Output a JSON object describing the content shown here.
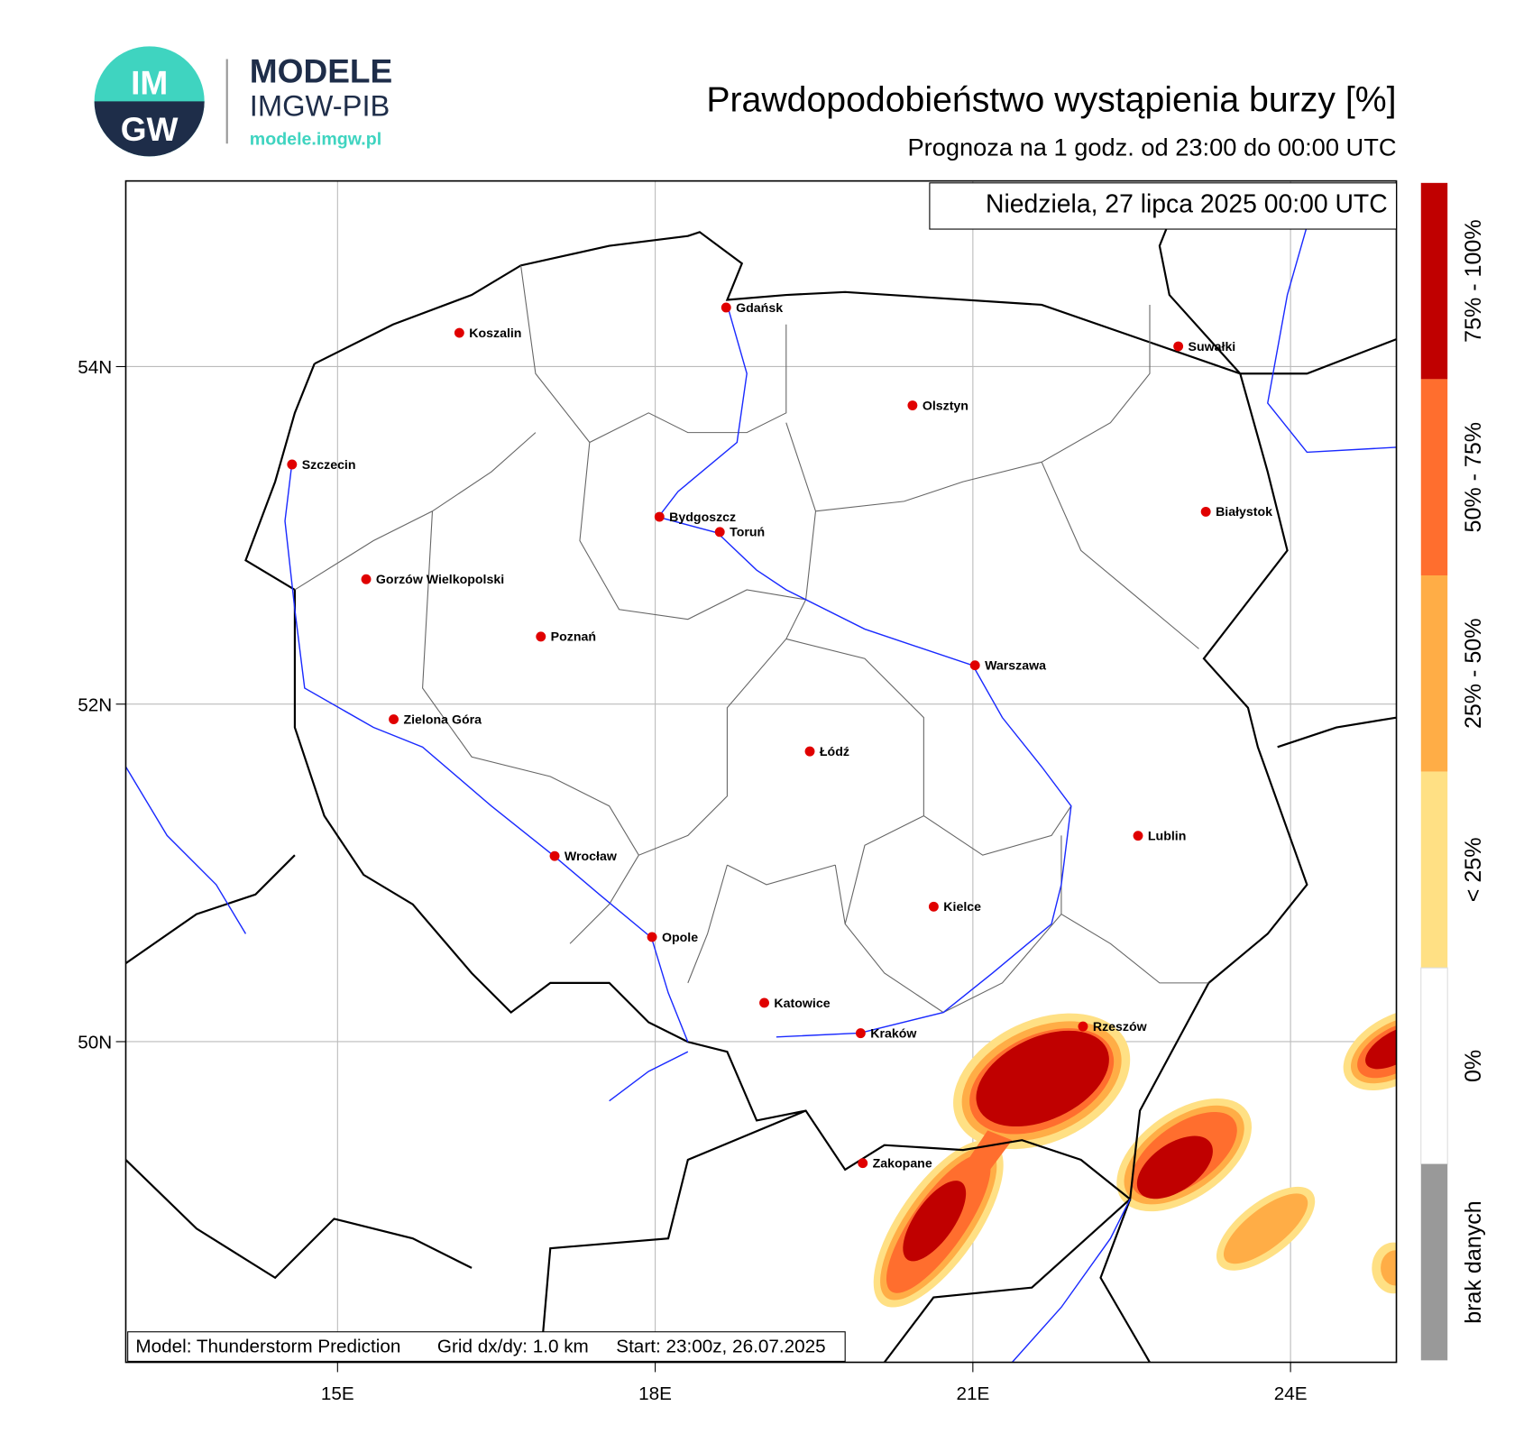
{
  "header": {
    "logo_top": "IM",
    "logo_bottom": "GW",
    "brand": "MODELE",
    "org": "IMGW-PIB",
    "url": "modele.imgw.pl",
    "title": "Prawdopodobieństwo wystąpienia burzy [%]",
    "subtitle": "Prognoza na 1 godz. od 23:00 do 00:00 UTC"
  },
  "map": {
    "valid_time": "Niedziela, 27 lipca 2025 00:00 UTC",
    "xlim": [
      13,
      25
    ],
    "ylim": [
      48.1,
      55.1
    ],
    "xticks": [
      {
        "value": 15,
        "label": "15E"
      },
      {
        "value": 18,
        "label": "18E"
      },
      {
        "value": 21,
        "label": "21E"
      },
      {
        "value": 24,
        "label": "24E"
      }
    ],
    "yticks": [
      {
        "value": 54,
        "label": "54N"
      },
      {
        "value": 52,
        "label": "52N"
      },
      {
        "value": 50,
        "label": "50N"
      }
    ],
    "grid": true,
    "city_color": "#e00000",
    "cities": [
      {
        "name": "Gdańsk",
        "lon": 18.67,
        "lat": 54.35
      },
      {
        "name": "Koszalin",
        "lon": 16.15,
        "lat": 54.2
      },
      {
        "name": "Suwałki",
        "lon": 22.94,
        "lat": 54.12
      },
      {
        "name": "Olsztyn",
        "lon": 20.43,
        "lat": 53.77
      },
      {
        "name": "Szczecin",
        "lon": 14.57,
        "lat": 53.42
      },
      {
        "name": "Bydgoszcz",
        "lon": 18.04,
        "lat": 53.11
      },
      {
        "name": "Białystok",
        "lon": 23.2,
        "lat": 53.14
      },
      {
        "name": "Toruń",
        "lon": 18.61,
        "lat": 53.02
      },
      {
        "name": "Gorzów Wielkopolski",
        "lon": 15.27,
        "lat": 52.74
      },
      {
        "name": "Poznań",
        "lon": 16.92,
        "lat": 52.4
      },
      {
        "name": "Warszawa",
        "lon": 21.02,
        "lat": 52.23
      },
      {
        "name": "Zielona Góra",
        "lon": 15.53,
        "lat": 51.91
      },
      {
        "name": "Łódź",
        "lon": 19.46,
        "lat": 51.72
      },
      {
        "name": "Lublin",
        "lon": 22.56,
        "lat": 51.22
      },
      {
        "name": "Wrocław",
        "lon": 17.05,
        "lat": 51.1
      },
      {
        "name": "Kielce",
        "lon": 20.63,
        "lat": 50.8
      },
      {
        "name": "Opole",
        "lon": 17.97,
        "lat": 50.62
      },
      {
        "name": "Katowice",
        "lon": 19.03,
        "lat": 50.23
      },
      {
        "name": "Kraków",
        "lon": 19.94,
        "lat": 50.05
      },
      {
        "name": "Rzeszów",
        "lon": 22.04,
        "lat": 50.09
      },
      {
        "name": "Zakopane",
        "lon": 19.96,
        "lat": 49.28
      }
    ]
  },
  "legend": {
    "classes": [
      {
        "label": "75% - 100%",
        "color": "#c00000"
      },
      {
        "label": "50% - 75%",
        "color": "#ff6e2e"
      },
      {
        "label": "25% - 50%",
        "color": "#ffad46"
      },
      {
        "label": "< 25%",
        "color": "#ffe084"
      },
      {
        "label": "0%",
        "color": "#ffffff"
      },
      {
        "label": "brak danych",
        "color": "#999999"
      }
    ]
  },
  "footer": {
    "model": "Model: Thunderstorm Prediction",
    "grid": "Grid dx/dy: 1.0 km",
    "start": "Start: 23:00z, 26.07.2025"
  }
}
